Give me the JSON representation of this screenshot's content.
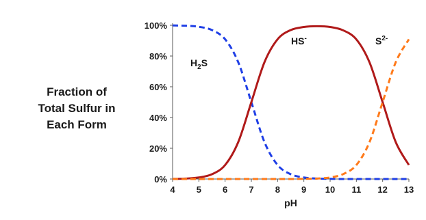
{
  "chart_data": {
    "type": "line",
    "title": "",
    "ylabel_lines": [
      "Fraction of",
      "Total Sulfur in",
      "Each Form"
    ],
    "xlabel": "pH",
    "xlim": [
      4,
      13
    ],
    "ylim": [
      0,
      100
    ],
    "xticks": [
      "4",
      "5",
      "6",
      "7",
      "8",
      "9",
      "10",
      "11",
      "12",
      "13"
    ],
    "yticks": [
      "0%",
      "20%",
      "40%",
      "60%",
      "80%",
      "100%"
    ],
    "grid": false,
    "x": [
      4,
      4.5,
      5,
      5.5,
      6,
      6.5,
      7,
      7.5,
      8,
      8.5,
      9,
      9.5,
      10,
      10.5,
      11,
      11.5,
      12,
      12.5,
      13
    ],
    "series": [
      {
        "name": "H2S",
        "label_main": "H",
        "label_sub": "2",
        "label_tail": "S",
        "color": "#1f3fe6",
        "style": "dashed",
        "values": [
          99.9,
          99.7,
          99.0,
          96.9,
          90.9,
          76.0,
          50.0,
          24.0,
          9.1,
          3.1,
          1.0,
          0.3,
          0.1,
          0.0,
          0.0,
          0.0,
          0.0,
          0.0,
          0.0
        ]
      },
      {
        "name": "HS-",
        "label_main": "HS",
        "label_sup": "-",
        "color": "#b01a1a",
        "style": "solid",
        "values": [
          0.1,
          0.3,
          1.0,
          3.1,
          9.1,
          24.0,
          50.0,
          76.0,
          90.9,
          96.9,
          98.9,
          99.4,
          98.9,
          96.7,
          90.8,
          75.9,
          50.0,
          24.0,
          9.1
        ]
      },
      {
        "name": "S2-",
        "label_main": "S",
        "label_sup": "2-",
        "color": "#ff7a1a",
        "style": "dashed",
        "values": [
          0.0,
          0.0,
          0.0,
          0.0,
          0.0,
          0.0,
          0.0,
          0.0,
          0.0,
          0.0,
          0.1,
          0.3,
          1.0,
          3.2,
          9.1,
          24.0,
          50.0,
          76.0,
          90.9
        ]
      }
    ]
  }
}
